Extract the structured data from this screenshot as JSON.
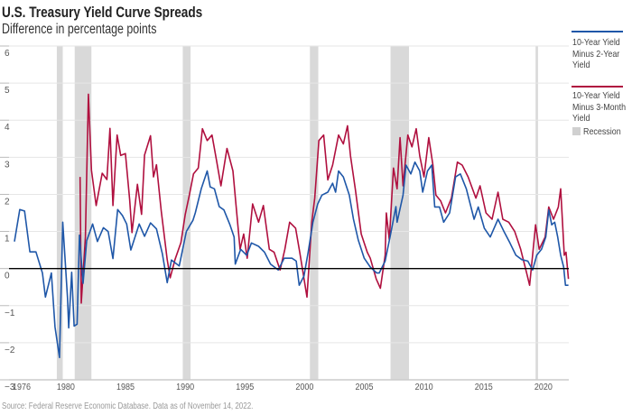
{
  "title": "U.S. Treasury Yield Curve Spreads",
  "subtitle": "Difference in percentage points",
  "source": "Source: Federal Reserve Economic Database. Data as of November 14, 2022.",
  "legend": {
    "series1": [
      "10-Year Yield",
      "Minus 2-Year",
      "Yield"
    ],
    "series2": [
      "10-Year Yield",
      "Minus 3-Month",
      "Yield"
    ],
    "recession": "Recession"
  },
  "colors": {
    "series1": "#1f57a8",
    "series2": "#b0103f",
    "recession": "#d9d9d9",
    "zero_line": "#000000",
    "grid": "#e6e6e6"
  },
  "chart_data": {
    "type": "line",
    "title": "U.S. Treasury Yield Curve Spreads",
    "subtitle": "Difference in percentage points",
    "xlim": [
      1976,
      2023
    ],
    "ylim": [
      -3,
      6
    ],
    "x_ticks": [
      "1976",
      "1980",
      "1985",
      "1990",
      "1995",
      "2000",
      "2005",
      "2010",
      "2015",
      "2020"
    ],
    "y_ticks": [
      "6",
      "5",
      "4",
      "3",
      "2",
      "1",
      "0",
      "−1",
      "−2",
      "−3"
    ],
    "grid": true,
    "legend_position": "right",
    "recessions": [
      [
        1980.0,
        1980.5
      ],
      [
        1981.5,
        1982.9
      ],
      [
        1990.55,
        1991.2
      ],
      [
        2001.2,
        2001.9
      ],
      [
        2007.95,
        2009.5
      ],
      [
        2020.1,
        2020.3
      ]
    ],
    "series": [
      {
        "name": "10-Year Yield Minus 2-Year Yield",
        "points": [
          [
            1976.45,
            0.73
          ],
          [
            1976.9,
            1.59
          ],
          [
            1977.3,
            1.55
          ],
          [
            1977.75,
            0.45
          ],
          [
            1978.25,
            0.45
          ],
          [
            1978.8,
            -0.12
          ],
          [
            1979.05,
            -0.77
          ],
          [
            1979.55,
            -0.12
          ],
          [
            1979.85,
            -1.57
          ],
          [
            1980.23,
            -2.4
          ],
          [
            1980.5,
            1.25
          ],
          [
            1980.9,
            -0.8
          ],
          [
            1981.0,
            -1.6
          ],
          [
            1981.25,
            -0.1
          ],
          [
            1981.45,
            -1.55
          ],
          [
            1981.7,
            -1.5
          ],
          [
            1981.9,
            0.9
          ],
          [
            1982.2,
            -0.4
          ],
          [
            1982.5,
            0.75
          ],
          [
            1983.0,
            1.2
          ],
          [
            1983.4,
            0.73
          ],
          [
            1983.9,
            1.1
          ],
          [
            1984.3,
            1.0
          ],
          [
            1984.7,
            0.27
          ],
          [
            1985.1,
            1.59
          ],
          [
            1985.5,
            1.43
          ],
          [
            1985.85,
            1.2
          ],
          [
            1986.2,
            0.5
          ],
          [
            1986.9,
            1.2
          ],
          [
            1987.35,
            0.87
          ],
          [
            1987.85,
            1.23
          ],
          [
            1988.35,
            1.07
          ],
          [
            1988.85,
            0.39
          ],
          [
            1989.25,
            -0.38
          ],
          [
            1989.6,
            0.23
          ],
          [
            1990.25,
            0.07
          ],
          [
            1990.85,
            1.0
          ],
          [
            1991.4,
            1.3
          ],
          [
            1991.6,
            1.5
          ],
          [
            1992.1,
            2.15
          ],
          [
            1992.6,
            2.63
          ],
          [
            1992.85,
            2.2
          ],
          [
            1993.2,
            2.15
          ],
          [
            1993.6,
            1.67
          ],
          [
            1994.0,
            1.58
          ],
          [
            1994.5,
            1.18
          ],
          [
            1994.85,
            0.85
          ],
          [
            1994.95,
            0.12
          ],
          [
            1995.4,
            0.52
          ],
          [
            1995.9,
            0.36
          ],
          [
            1996.3,
            0.69
          ],
          [
            1996.9,
            0.6
          ],
          [
            1997.4,
            0.44
          ],
          [
            1997.9,
            0.12
          ],
          [
            1998.55,
            -0.04
          ],
          [
            1999.05,
            0.28
          ],
          [
            1999.7,
            0.28
          ],
          [
            2000.05,
            0.2
          ],
          [
            2000.3,
            -0.45
          ],
          [
            2000.7,
            -0.2
          ],
          [
            2001.05,
            0.44
          ],
          [
            2001.45,
            1.25
          ],
          [
            2001.85,
            1.74
          ],
          [
            2002.2,
            1.98
          ],
          [
            2002.7,
            2.06
          ],
          [
            2003.1,
            2.3
          ],
          [
            2003.35,
            2.06
          ],
          [
            2003.6,
            2.63
          ],
          [
            2004.0,
            2.47
          ],
          [
            2004.5,
            1.98
          ],
          [
            2004.85,
            1.33
          ],
          [
            2005.25,
            0.77
          ],
          [
            2005.75,
            0.28
          ],
          [
            2006.25,
            0.04
          ],
          [
            2006.8,
            -0.12
          ],
          [
            2007.0,
            -0.12
          ],
          [
            2007.5,
            0.2
          ],
          [
            2008.0,
            1.0
          ],
          [
            2008.4,
            1.67
          ],
          [
            2008.5,
            1.25
          ],
          [
            2009.0,
            1.98
          ],
          [
            2009.25,
            2.79
          ],
          [
            2009.65,
            2.55
          ],
          [
            2010.0,
            2.87
          ],
          [
            2010.4,
            2.63
          ],
          [
            2010.65,
            2.06
          ],
          [
            2011.05,
            2.63
          ],
          [
            2011.4,
            2.79
          ],
          [
            2011.65,
            1.66
          ],
          [
            2012.05,
            1.66
          ],
          [
            2012.4,
            1.25
          ],
          [
            2012.9,
            1.5
          ],
          [
            2013.4,
            2.47
          ],
          [
            2013.8,
            2.55
          ],
          [
            2014.3,
            2.15
          ],
          [
            2014.95,
            1.33
          ],
          [
            2015.3,
            1.66
          ],
          [
            2015.8,
            1.09
          ],
          [
            2016.3,
            0.85
          ],
          [
            2016.95,
            1.33
          ],
          [
            2017.45,
            1.0
          ],
          [
            2017.95,
            0.69
          ],
          [
            2018.45,
            0.36
          ],
          [
            2018.95,
            0.24
          ],
          [
            2019.45,
            0.2
          ],
          [
            2019.85,
            -0.04
          ],
          [
            2020.2,
            0.36
          ],
          [
            2020.6,
            0.52
          ],
          [
            2020.95,
            0.85
          ],
          [
            2021.2,
            1.58
          ],
          [
            2021.45,
            1.18
          ],
          [
            2021.7,
            1.25
          ],
          [
            2021.95,
            0.85
          ],
          [
            2022.2,
            0.36
          ],
          [
            2022.45,
            0.04
          ],
          [
            2022.6,
            -0.45
          ],
          [
            2022.85,
            -0.45
          ]
        ]
      },
      {
        "name": "10-Year Yield Minus 3-Month Yield",
        "points": [
          [
            1981.95,
            2.47
          ],
          [
            1982.05,
            -0.93
          ],
          [
            1982.4,
            0.85
          ],
          [
            1982.65,
            4.7
          ],
          [
            1982.9,
            2.65
          ],
          [
            1983.3,
            1.7
          ],
          [
            1983.8,
            2.57
          ],
          [
            1984.2,
            2.4
          ],
          [
            1984.45,
            3.78
          ],
          [
            1984.7,
            1.7
          ],
          [
            1985.05,
            3.6
          ],
          [
            1985.35,
            3.05
          ],
          [
            1985.75,
            3.1
          ],
          [
            1986.1,
            1.86
          ],
          [
            1986.3,
            0.97
          ],
          [
            1986.75,
            2.27
          ],
          [
            1987.1,
            1.46
          ],
          [
            1987.35,
            3.06
          ],
          [
            1987.85,
            3.58
          ],
          [
            1988.1,
            2.47
          ],
          [
            1988.35,
            2.8
          ],
          [
            1988.75,
            1.55
          ],
          [
            1989.25,
            0.24
          ],
          [
            1989.5,
            -0.25
          ],
          [
            1989.9,
            0.24
          ],
          [
            1990.4,
            0.7
          ],
          [
            1990.75,
            1.45
          ],
          [
            1991.1,
            1.98
          ],
          [
            1991.45,
            2.55
          ],
          [
            1991.85,
            2.71
          ],
          [
            1992.2,
            3.77
          ],
          [
            1992.6,
            3.45
          ],
          [
            1993.0,
            3.6
          ],
          [
            1993.35,
            2.96
          ],
          [
            1993.75,
            2.23
          ],
          [
            1994.25,
            3.24
          ],
          [
            1994.75,
            2.63
          ],
          [
            1995.0,
            1.74
          ],
          [
            1995.35,
            0.52
          ],
          [
            1995.65,
            0.93
          ],
          [
            1995.95,
            0.28
          ],
          [
            1996.4,
            1.74
          ],
          [
            1996.9,
            1.25
          ],
          [
            1997.3,
            1.7
          ],
          [
            1997.8,
            0.52
          ],
          [
            1998.2,
            0.44
          ],
          [
            1998.7,
            -0.04
          ],
          [
            1999.1,
            0.52
          ],
          [
            1999.5,
            1.25
          ],
          [
            2000.0,
            1.09
          ],
          [
            2000.35,
            0.44
          ],
          [
            2000.95,
            -0.77
          ],
          [
            2001.35,
            1.25
          ],
          [
            2001.6,
            1.9
          ],
          [
            2001.95,
            3.45
          ],
          [
            2002.35,
            3.6
          ],
          [
            2002.7,
            2.39
          ],
          [
            2003.1,
            2.79
          ],
          [
            2003.6,
            3.6
          ],
          [
            2004.0,
            3.36
          ],
          [
            2004.35,
            3.85
          ],
          [
            2004.6,
            3.04
          ],
          [
            2005.0,
            2.15
          ],
          [
            2005.5,
            0.93
          ],
          [
            2006.0,
            0.44
          ],
          [
            2006.25,
            0.28
          ],
          [
            2006.75,
            -0.28
          ],
          [
            2007.1,
            -0.53
          ],
          [
            2007.5,
            0.36
          ],
          [
            2007.6,
            1.5
          ],
          [
            2007.85,
            0.77
          ],
          [
            2008.2,
            2.71
          ],
          [
            2008.5,
            2.15
          ],
          [
            2008.75,
            3.53
          ],
          [
            2009.0,
            2.23
          ],
          [
            2009.4,
            3.6
          ],
          [
            2009.75,
            3.28
          ],
          [
            2010.1,
            3.77
          ],
          [
            2010.4,
            3.04
          ],
          [
            2010.75,
            2.47
          ],
          [
            2011.15,
            3.53
          ],
          [
            2011.5,
            2.79
          ],
          [
            2011.75,
            1.98
          ],
          [
            2012.15,
            1.82
          ],
          [
            2012.55,
            1.5
          ],
          [
            2013.05,
            1.9
          ],
          [
            2013.55,
            2.87
          ],
          [
            2013.95,
            2.79
          ],
          [
            2014.45,
            2.47
          ],
          [
            2015.1,
            1.9
          ],
          [
            2015.45,
            2.23
          ],
          [
            2015.95,
            1.5
          ],
          [
            2016.45,
            1.33
          ],
          [
            2016.95,
            2.06
          ],
          [
            2017.35,
            1.33
          ],
          [
            2017.85,
            1.25
          ],
          [
            2018.35,
            1.0
          ],
          [
            2018.85,
            0.52
          ],
          [
            2019.35,
            -0.12
          ],
          [
            2019.6,
            -0.45
          ],
          [
            2019.85,
            0.36
          ],
          [
            2020.1,
            1.18
          ],
          [
            2020.4,
            0.52
          ],
          [
            2020.9,
            0.85
          ],
          [
            2021.2,
            1.66
          ],
          [
            2021.6,
            1.33
          ],
          [
            2022.0,
            1.66
          ],
          [
            2022.2,
            2.15
          ],
          [
            2022.5,
            0.36
          ],
          [
            2022.65,
            0.44
          ],
          [
            2022.85,
            -0.28
          ]
        ]
      }
    ]
  }
}
